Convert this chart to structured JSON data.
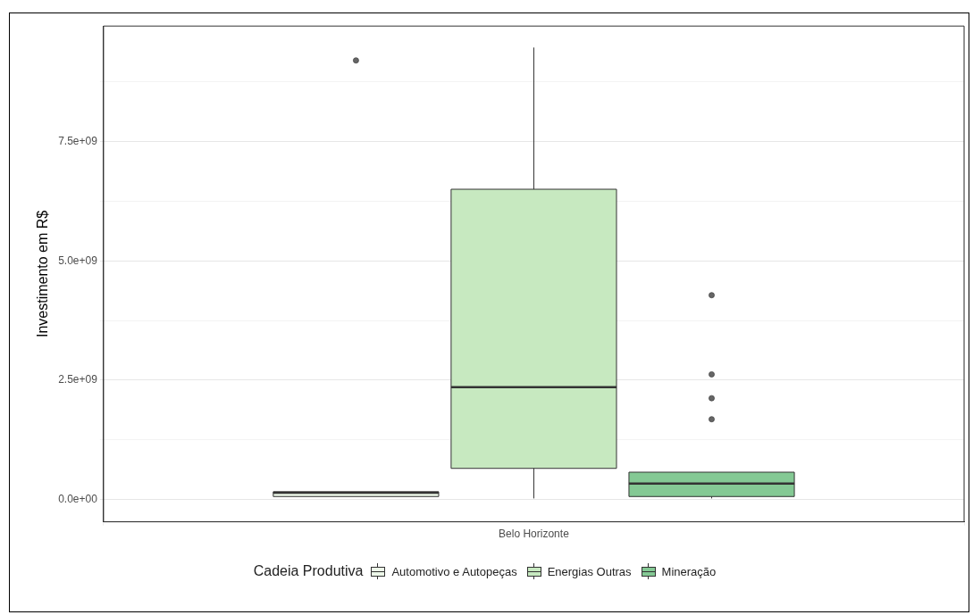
{
  "chart_data": {
    "type": "box",
    "ylabel": "Investimento em R$",
    "legend_title": "Cadeia Produtiva",
    "legend": "bottom",
    "grid": true,
    "categories": [
      "Belo Horizonte"
    ],
    "ylim": [
      -470000000,
      9920000000
    ],
    "yticks": [
      {
        "value": 0,
        "label": "0.0e+00"
      },
      {
        "value": 1250000000,
        "label": null
      },
      {
        "value": 2500000000,
        "label": "2.5e+09"
      },
      {
        "value": 3750000000,
        "label": null
      },
      {
        "value": 5000000000,
        "label": "5.0e+09"
      },
      {
        "value": 6250000000,
        "label": null
      },
      {
        "value": 7500000000,
        "label": "7.5e+09"
      },
      {
        "value": 8750000000,
        "label": null
      }
    ],
    "series": [
      {
        "name": "Automotivo e Autopeças",
        "color": "#edf8e9",
        "boxes": [
          {
            "low": 60000000,
            "q1": 60000000,
            "median": 140000000,
            "q3": 160000000,
            "high": 160000000,
            "outliers": [
              9200000000
            ]
          }
        ]
      },
      {
        "name": "Energias Outras",
        "color": "#c7e9c0",
        "boxes": [
          {
            "low": 20000000,
            "q1": 650000000,
            "median": 2350000000,
            "q3": 6500000000,
            "high": 9470000000
          }
        ]
      },
      {
        "name": "Mineração",
        "color": "#84c994",
        "boxes": [
          {
            "low": 20000000,
            "q1": 60000000,
            "median": 330000000,
            "q3": 570000000,
            "high": 570000000,
            "outliers": [
              4280000000,
              2620000000,
              2120000000,
              1680000000
            ]
          }
        ]
      }
    ]
  }
}
